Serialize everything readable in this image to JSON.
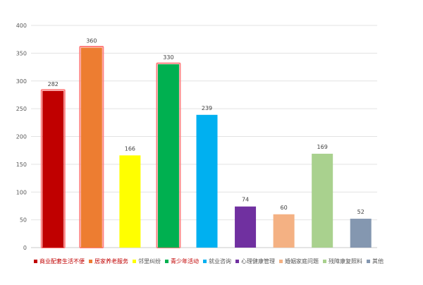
{
  "chart_data": {
    "type": "bar",
    "categories": [
      "商业配套生活不便",
      "居家养老服务",
      "邻里纠纷",
      "青少年活动",
      "就业咨询",
      "心理健康管理",
      "婚姻家庭问题",
      "残障康复照料",
      "其他"
    ],
    "values": [
      282,
      360,
      166,
      330,
      239,
      74,
      60,
      169,
      52
    ],
    "colors": [
      "#c00000",
      "#ed7d31",
      "#ffff00",
      "#00b050",
      "#00b0f0",
      "#7030a0",
      "#f4b183",
      "#a9d18e",
      "#8497b0"
    ],
    "highlighted": [
      true,
      true,
      false,
      true,
      false,
      false,
      false,
      false,
      false
    ],
    "highlight_color": "#ff7f7f",
    "legend_text_colors": [
      "#c00000",
      "#c00000",
      "#555555",
      "#c00000",
      "#555555",
      "#555555",
      "#555555",
      "#555555",
      "#555555"
    ],
    "y_ticks": [
      0,
      50,
      100,
      150,
      200,
      250,
      300,
      350,
      400
    ],
    "ylim": [
      0,
      400
    ],
    "grid": true,
    "legend_position": "bottom",
    "data_labels": true
  }
}
